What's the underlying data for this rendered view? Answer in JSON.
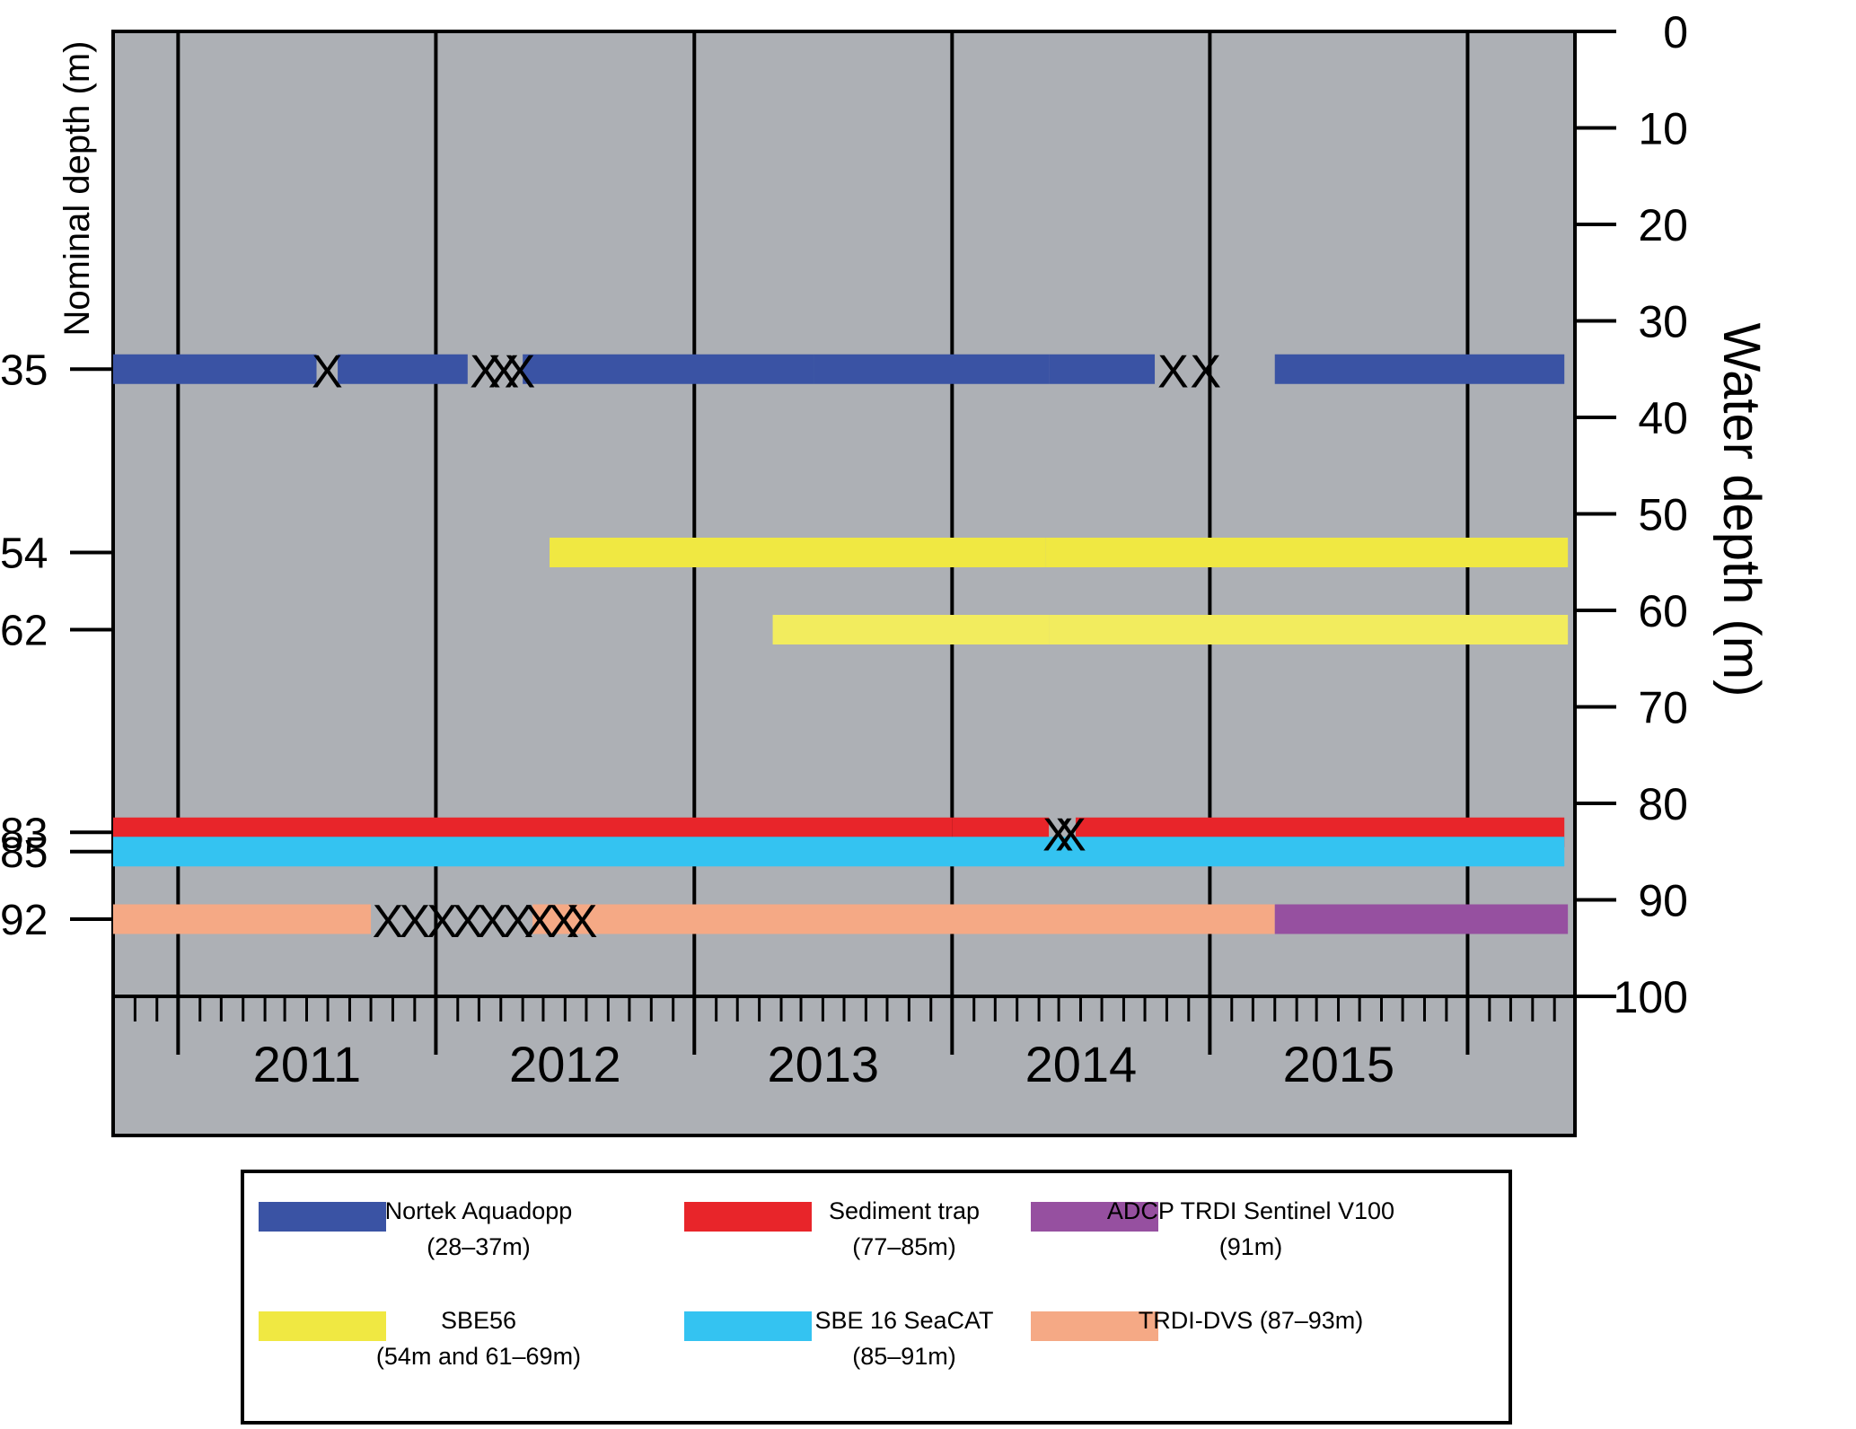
{
  "chart_data": {
    "type": "timeline",
    "x_axis": {
      "tick_labels": [
        "2011",
        "2012",
        "2013",
        "2014",
        "2015"
      ],
      "range": [
        "2010-07-01",
        "2016-03-01"
      ],
      "year_boundaries": [
        "2010-10-01",
        "2011-10-01",
        "2012-10-01",
        "2013-10-01",
        "2014-10-01",
        "2015-10-01"
      ],
      "minor_ticks": "monthly"
    },
    "left_axis": {
      "label": "Nominal depth (m)",
      "tick_labels": [
        "35",
        "54",
        "62",
        "83",
        "85",
        "92"
      ]
    },
    "right_axis": {
      "label": "Water depth (m)",
      "range": [
        0,
        100
      ],
      "inverted": true,
      "tick_labels": [
        "0",
        "10",
        "20",
        "30",
        "40",
        "50",
        "60",
        "70",
        "80",
        "90",
        "100"
      ]
    },
    "plot_background": "#adb0b5",
    "series": [
      {
        "name": "Nortek Aquadopp",
        "range_label": "(28–37m)",
        "color": "#3a53a4",
        "depth": 35,
        "segments": [
          [
            "2010-07-01",
            "2011-04-15"
          ],
          [
            "2011-05-15",
            "2011-11-15"
          ],
          [
            "2012-02-01",
            "2013-03-20"
          ],
          [
            "2013-03-20",
            "2014-02-15"
          ],
          [
            "2014-02-15",
            "2014-07-15"
          ],
          [
            "2015-01-01",
            "2016-02-15"
          ]
        ],
        "gaps": {
          "marker": "X",
          "marks": [
            "2011-04-30",
            "2011-12-10",
            "2012-01-05",
            "2012-01-28",
            "2014-08-10",
            "2014-09-25"
          ]
        }
      },
      {
        "name": "SBE56",
        "range_label": "(54m and 61–69m)",
        "color": "#f0e842",
        "depth": 54,
        "segments": [
          [
            "2012-03-10",
            "2013-02-01"
          ],
          [
            "2013-02-01",
            "2014-02-10"
          ],
          [
            "2014-02-10",
            "2016-02-20"
          ]
        ]
      },
      {
        "name": "SBE56",
        "range_label": "(54m and 61–69m)",
        "color": "#f2ec5e",
        "depth": 62,
        "segments": [
          [
            "2013-01-20",
            "2014-02-15"
          ],
          [
            "2014-02-15",
            "2016-02-20"
          ]
        ]
      },
      {
        "name": "Sediment trap",
        "range_label": "(77–85m)",
        "color": "#e8252a",
        "depth": 83,
        "segments": [
          [
            "2010-07-01",
            "2013-10-01"
          ],
          [
            "2013-10-01",
            "2014-02-15"
          ],
          [
            "2014-03-25",
            "2016-02-15"
          ]
        ],
        "gaps": {
          "marker": "X",
          "marks": [
            "2014-02-28",
            "2014-03-18"
          ]
        }
      },
      {
        "name": "SBE 16 SeaCAT",
        "range_label": "(85–91m)",
        "color": "#34c3f1",
        "depth": 85,
        "segments": [
          [
            "2010-07-01",
            "2016-02-15"
          ]
        ]
      },
      {
        "name": "TRDI-DVS",
        "range_label": "(87–93m)",
        "color": "#f5a985",
        "depth": 92,
        "segments": [
          [
            "2010-07-01",
            "2011-07-01"
          ],
          [
            "2012-02-15",
            "2015-01-01"
          ]
        ],
        "gaps": {
          "marker": "X",
          "marks": [
            "2011-07-25",
            "2011-09-01",
            "2011-10-10",
            "2011-11-15",
            "2011-12-20",
            "2012-01-25",
            "2012-02-25",
            "2012-03-30",
            "2012-04-25"
          ]
        }
      },
      {
        "name": "ADCP TRDI Sentinel V100",
        "range_label": "(91m)",
        "color": "#9650a0",
        "depth": 92,
        "segments": [
          [
            "2015-01-01",
            "2016-02-20"
          ]
        ]
      }
    ],
    "legend": {
      "placement": "bottom",
      "entries": [
        {
          "label": "Nortek Aquadopp",
          "sublabel": "(28–37m)",
          "color": "#3a53a4"
        },
        {
          "label": "Sediment trap",
          "sublabel": "(77–85m)",
          "color": "#e8252a"
        },
        {
          "label": "ADCP TRDI Sentinel V100",
          "sublabel": "(91m)",
          "color": "#9650a0"
        },
        {
          "label": "SBE56",
          "sublabel": "(54m and 61–69m)",
          "color": "#f0e842"
        },
        {
          "label": "SBE 16 SeaCAT",
          "sublabel": "(85–91m)",
          "color": "#34c3f1"
        },
        {
          "label": "TRDI-DVS (87–93m)",
          "sublabel": "",
          "color": "#f5a985"
        }
      ]
    }
  }
}
